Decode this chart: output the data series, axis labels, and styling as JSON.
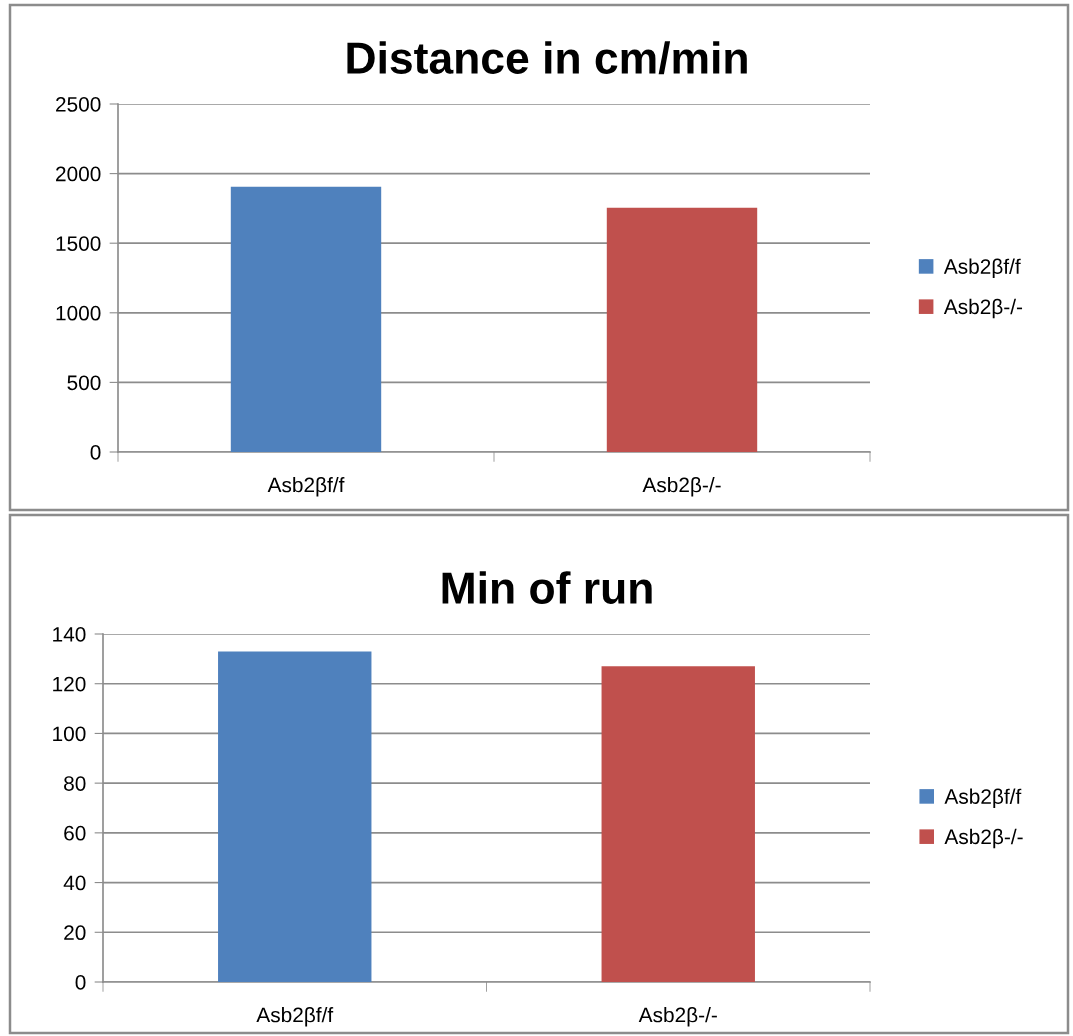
{
  "chart_data": [
    {
      "type": "bar",
      "title": "Distance in cm/min",
      "categories": [
        "Asb2βf/f",
        "Asb2β-/-"
      ],
      "series": [
        {
          "name": "Asb2βf/f",
          "color": "#4f81bd",
          "values": [
            1905,
            null
          ]
        },
        {
          "name": "Asb2β-/-",
          "color": "#c0504d",
          "values": [
            null,
            1755
          ]
        }
      ],
      "ylim": [
        0,
        2500
      ],
      "yticks": [
        0,
        500,
        1000,
        1500,
        2000,
        2500
      ],
      "grid": "y",
      "legend": "right"
    },
    {
      "type": "bar",
      "title": "Min of run",
      "categories": [
        "Asb2βf/f",
        "Asb2β-/-"
      ],
      "series": [
        {
          "name": "Asb2βf/f",
          "color": "#4f81bd",
          "values": [
            133,
            null
          ]
        },
        {
          "name": "Asb2β-/-",
          "color": "#c0504d",
          "values": [
            null,
            127
          ]
        }
      ],
      "ylim": [
        0,
        140
      ],
      "yticks": [
        0,
        20,
        40,
        60,
        80,
        100,
        120,
        140
      ],
      "grid": "y",
      "legend": "right"
    }
  ]
}
